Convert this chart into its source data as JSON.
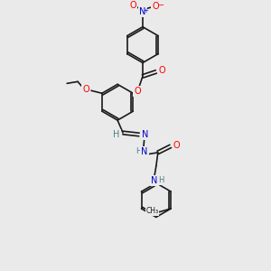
{
  "background_color": "#eaeaea",
  "bond_color": "#1a1a1a",
  "atom_colors": {
    "O": "#ff0000",
    "N": "#0000cc",
    "C": "#1a1a1a",
    "H": "#4a8080"
  },
  "figsize": [
    3.0,
    3.0
  ],
  "dpi": 100,
  "lw": 1.2,
  "fs": 7.0,
  "fs_small": 6.0
}
